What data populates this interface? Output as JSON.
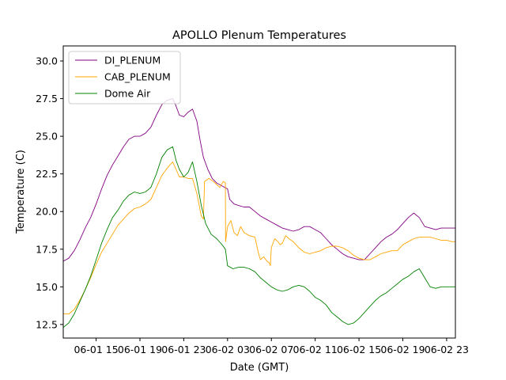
{
  "chart_data": {
    "type": "line",
    "title": "APOLLO Plenum Temperatures",
    "xlabel": "Date (GMT)",
    "ylabel": "Temperature (C)",
    "x_unit": "hours since 06-01 09:00 GMT",
    "xlim": [
      3,
      38.8
    ],
    "ylim": [
      11.6,
      31.0
    ],
    "x_ticks": [
      {
        "value": 6,
        "label": "06-01 15"
      },
      {
        "value": 10,
        "label": "06-01 19"
      },
      {
        "value": 14,
        "label": "06-01 23"
      },
      {
        "value": 18,
        "label": "06-02 03"
      },
      {
        "value": 22,
        "label": "06-02 07"
      },
      {
        "value": 26,
        "label": "06-02 11"
      },
      {
        "value": 30,
        "label": "06-02 15"
      },
      {
        "value": 34,
        "label": "06-02 19"
      },
      {
        "value": 38,
        "label": "06-02 23"
      }
    ],
    "y_ticks": [
      {
        "value": 12.5,
        "label": "12.5"
      },
      {
        "value": 15.0,
        "label": "15.0"
      },
      {
        "value": 17.5,
        "label": "17.5"
      },
      {
        "value": 20.0,
        "label": "20.0"
      },
      {
        "value": 22.5,
        "label": "22.5"
      },
      {
        "value": 25.0,
        "label": "25.0"
      },
      {
        "value": 27.5,
        "label": "27.5"
      },
      {
        "value": 30.0,
        "label": "30.0"
      }
    ],
    "legend_position": "top-left",
    "series": [
      {
        "name": "DI_PLENUM",
        "color": "#800080",
        "x": [
          3.0,
          3.5,
          4.0,
          4.5,
          5.0,
          5.5,
          6.0,
          6.5,
          7.0,
          7.5,
          8.0,
          8.5,
          9.0,
          9.5,
          10.0,
          10.5,
          11.0,
          11.5,
          12.0,
          12.5,
          13.0,
          13.3,
          13.6,
          14.0,
          14.4,
          14.8,
          15.2,
          15.5,
          15.8,
          16.2,
          16.6,
          17.0,
          17.5,
          18.0,
          18.2,
          18.6,
          19.0,
          19.5,
          20.0,
          20.5,
          21.0,
          21.5,
          22.0,
          22.5,
          23.0,
          23.5,
          24.0,
          24.5,
          25.0,
          25.5,
          26.0,
          26.5,
          27.0,
          27.5,
          28.0,
          28.5,
          29.0,
          29.5,
          30.0,
          30.5,
          31.0,
          31.5,
          32.0,
          32.5,
          33.0,
          33.5,
          34.0,
          34.5,
          35.0,
          35.5,
          36.0,
          36.5,
          37.0,
          37.5,
          38.0,
          38.5,
          38.8
        ],
        "y": [
          16.7,
          16.9,
          17.4,
          18.1,
          18.9,
          19.6,
          20.5,
          21.5,
          22.4,
          23.1,
          23.7,
          24.3,
          24.8,
          25.0,
          25.0,
          25.2,
          25.6,
          26.4,
          27.1,
          27.4,
          27.5,
          27.0,
          26.4,
          26.3,
          26.6,
          26.8,
          26.0,
          24.7,
          23.6,
          22.8,
          22.2,
          21.9,
          21.7,
          21.5,
          20.8,
          20.5,
          20.4,
          20.3,
          20.3,
          20.0,
          19.7,
          19.5,
          19.3,
          19.1,
          18.9,
          18.8,
          18.7,
          18.8,
          19.0,
          19.0,
          18.8,
          18.6,
          18.2,
          17.8,
          17.5,
          17.2,
          17.0,
          16.9,
          16.8,
          16.8,
          17.2,
          17.6,
          18.0,
          18.3,
          18.5,
          18.8,
          19.2,
          19.6,
          19.9,
          19.6,
          19.0,
          18.9,
          18.8,
          18.9,
          18.9,
          18.9,
          18.9
        ]
      },
      {
        "name": "CAB_PLENUM",
        "color": "#ffa500",
        "x": [
          3.0,
          3.5,
          4.0,
          4.5,
          5.0,
          5.5,
          6.0,
          6.5,
          7.0,
          7.5,
          8.0,
          8.5,
          9.0,
          9.5,
          10.0,
          10.5,
          11.0,
          11.5,
          12.0,
          12.5,
          13.0,
          13.3,
          13.6,
          14.0,
          14.4,
          14.8,
          15.2,
          15.6,
          15.8,
          15.9,
          16.3,
          16.7,
          17.0,
          17.3,
          17.6,
          17.8,
          17.82,
          18.0,
          18.3,
          18.6,
          18.9,
          19.2,
          19.5,
          20.0,
          20.5,
          20.8,
          21.0,
          21.3,
          21.6,
          21.8,
          21.9,
          22.0,
          22.3,
          22.6,
          22.8,
          23.0,
          23.3,
          23.6,
          24.0,
          24.5,
          25.0,
          25.5,
          26.0,
          26.5,
          27.0,
          27.5,
          28.0,
          28.5,
          29.0,
          29.5,
          30.0,
          30.5,
          31.0,
          31.5,
          32.0,
          32.5,
          33.0,
          33.5,
          34.0,
          34.5,
          35.0,
          35.5,
          36.0,
          36.5,
          37.0,
          37.5,
          38.0,
          38.5,
          38.8
        ],
        "y": [
          13.2,
          13.2,
          13.5,
          14.1,
          14.8,
          15.6,
          16.5,
          17.3,
          17.9,
          18.5,
          19.1,
          19.5,
          19.9,
          20.2,
          20.3,
          20.5,
          20.8,
          21.6,
          22.4,
          22.9,
          23.3,
          22.8,
          22.3,
          22.3,
          22.2,
          22.2,
          21.2,
          19.7,
          19.5,
          22.0,
          22.2,
          22.0,
          21.8,
          21.6,
          22.0,
          21.9,
          18.0,
          19.0,
          19.4,
          18.6,
          18.4,
          19.0,
          18.6,
          18.4,
          18.3,
          17.3,
          16.8,
          17.0,
          16.7,
          16.6,
          16.4,
          17.6,
          18.2,
          18.0,
          17.8,
          17.9,
          18.4,
          18.2,
          18.0,
          17.6,
          17.3,
          17.2,
          17.3,
          17.4,
          17.6,
          17.7,
          17.7,
          17.6,
          17.4,
          17.1,
          16.9,
          16.8,
          16.8,
          17.0,
          17.2,
          17.3,
          17.4,
          17.4,
          17.8,
          18.0,
          18.2,
          18.3,
          18.3,
          18.3,
          18.2,
          18.1,
          18.1,
          18.0,
          18.0
        ]
      },
      {
        "name": "Dome Air",
        "color": "#008000",
        "x": [
          3.0,
          3.5,
          4.0,
          4.5,
          5.0,
          5.5,
          6.0,
          6.5,
          7.0,
          7.5,
          8.0,
          8.5,
          9.0,
          9.5,
          10.0,
          10.5,
          11.0,
          11.5,
          12.0,
          12.5,
          13.0,
          13.3,
          13.6,
          14.0,
          14.4,
          14.8,
          15.2,
          15.6,
          16.0,
          16.5,
          17.0,
          17.5,
          17.8,
          18.0,
          18.5,
          19.0,
          19.5,
          20.0,
          20.5,
          21.0,
          21.5,
          22.0,
          22.5,
          23.0,
          23.5,
          24.0,
          24.5,
          25.0,
          25.5,
          26.0,
          26.5,
          27.0,
          27.5,
          28.0,
          28.5,
          29.0,
          29.5,
          30.0,
          30.5,
          31.0,
          31.5,
          32.0,
          32.5,
          33.0,
          33.5,
          34.0,
          34.5,
          35.0,
          35.5,
          36.0,
          36.5,
          37.0,
          37.5,
          38.0,
          38.5,
          38.8
        ],
        "y": [
          12.3,
          12.6,
          13.2,
          14.0,
          14.8,
          15.7,
          16.8,
          17.9,
          18.8,
          19.6,
          20.1,
          20.7,
          21.1,
          21.3,
          21.2,
          21.3,
          21.6,
          22.5,
          23.6,
          24.1,
          24.3,
          23.4,
          22.8,
          22.3,
          22.6,
          23.3,
          22.0,
          20.4,
          19.2,
          18.5,
          18.2,
          17.8,
          17.5,
          16.4,
          16.2,
          16.3,
          16.3,
          16.2,
          16.0,
          15.6,
          15.3,
          15.0,
          14.8,
          14.7,
          14.8,
          15.0,
          15.1,
          15.0,
          14.7,
          14.3,
          14.1,
          13.8,
          13.3,
          13.0,
          12.7,
          12.5,
          12.6,
          12.9,
          13.3,
          13.7,
          14.1,
          14.4,
          14.6,
          14.9,
          15.2,
          15.5,
          15.7,
          16.0,
          16.2,
          15.6,
          15.0,
          14.9,
          15.0,
          15.0,
          15.0,
          15.0
        ]
      }
    ]
  }
}
